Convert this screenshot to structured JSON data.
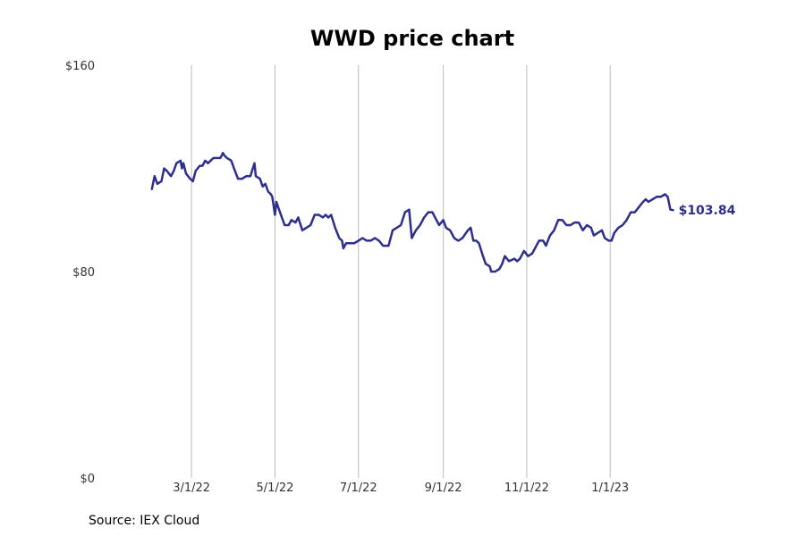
{
  "chart_data": {
    "type": "line",
    "title": "WWD price chart",
    "source": "Source: IEX Cloud",
    "xlabel": "",
    "ylabel": "",
    "ylim": [
      0,
      160
    ],
    "xlim": [
      "2022-01-05",
      "2023-03-19"
    ],
    "y_ticks": [
      {
        "value": 0,
        "label": "$0"
      },
      {
        "value": 80,
        "label": "$80"
      },
      {
        "value": 160,
        "label": "$160"
      }
    ],
    "x_ticks": [
      {
        "date": "2022-03-01",
        "label": "3/1/22"
      },
      {
        "date": "2022-05-01",
        "label": "5/1/22"
      },
      {
        "date": "2022-07-01",
        "label": "7/1/22"
      },
      {
        "date": "2022-09-01",
        "label": "9/1/22"
      },
      {
        "date": "2022-11-01",
        "label": "11/1/22"
      },
      {
        "date": "2023-01-01",
        "label": "1/1/23"
      }
    ],
    "grid": {
      "vertical": true,
      "horizontal": false
    },
    "line_color": "#2e2e8f",
    "grid_color": "#bbbbbb",
    "last_value_label": "$103.84",
    "series": [
      {
        "points": [
          [
            "2022-01-31",
            112
          ],
          [
            "2022-02-02",
            117
          ],
          [
            "2022-02-04",
            114
          ],
          [
            "2022-02-07",
            115
          ],
          [
            "2022-02-09",
            120
          ],
          [
            "2022-02-11",
            119
          ],
          [
            "2022-02-14",
            117
          ],
          [
            "2022-02-16",
            119
          ],
          [
            "2022-02-18",
            122
          ],
          [
            "2022-02-21",
            123
          ],
          [
            "2022-02-22",
            120
          ],
          [
            "2022-02-23",
            122
          ],
          [
            "2022-02-25",
            118
          ],
          [
            "2022-02-28",
            116
          ],
          [
            "2022-03-02",
            115
          ],
          [
            "2022-03-04",
            119
          ],
          [
            "2022-03-07",
            121
          ],
          [
            "2022-03-09",
            121
          ],
          [
            "2022-03-11",
            123
          ],
          [
            "2022-03-13",
            122
          ],
          [
            "2022-03-15",
            123
          ],
          [
            "2022-03-17",
            124
          ],
          [
            "2022-03-20",
            124
          ],
          [
            "2022-03-22",
            124
          ],
          [
            "2022-03-24",
            126
          ],
          [
            "2022-03-25",
            125
          ],
          [
            "2022-03-27",
            124
          ],
          [
            "2022-03-30",
            123
          ],
          [
            "2022-04-01",
            120
          ],
          [
            "2022-04-04",
            116
          ],
          [
            "2022-04-07",
            116
          ],
          [
            "2022-04-10",
            117
          ],
          [
            "2022-04-13",
            117
          ],
          [
            "2022-04-16",
            122
          ],
          [
            "2022-04-17",
            117
          ],
          [
            "2022-04-20",
            116
          ],
          [
            "2022-04-22",
            113
          ],
          [
            "2022-04-24",
            114
          ],
          [
            "2022-04-26",
            111
          ],
          [
            "2022-04-28",
            110
          ],
          [
            "2022-04-29",
            109
          ],
          [
            "2022-05-01",
            102
          ],
          [
            "2022-05-02",
            107
          ],
          [
            "2022-05-04",
            104
          ],
          [
            "2022-05-08",
            98
          ],
          [
            "2022-05-11",
            98
          ],
          [
            "2022-05-13",
            100
          ],
          [
            "2022-05-16",
            99
          ],
          [
            "2022-05-18",
            101
          ],
          [
            "2022-05-21",
            96
          ],
          [
            "2022-05-24",
            97
          ],
          [
            "2022-05-27",
            98
          ],
          [
            "2022-05-30",
            102
          ],
          [
            "2022-06-02",
            102
          ],
          [
            "2022-06-05",
            101
          ],
          [
            "2022-06-07",
            102
          ],
          [
            "2022-06-09",
            101
          ],
          [
            "2022-06-11",
            102
          ],
          [
            "2022-06-14",
            97
          ],
          [
            "2022-06-17",
            93
          ],
          [
            "2022-06-19",
            92
          ],
          [
            "2022-06-20",
            89
          ],
          [
            "2022-06-22",
            91
          ],
          [
            "2022-06-25",
            91
          ],
          [
            "2022-06-28",
            91
          ],
          [
            "2022-07-01",
            92
          ],
          [
            "2022-07-04",
            93
          ],
          [
            "2022-07-07",
            92
          ],
          [
            "2022-07-10",
            92
          ],
          [
            "2022-07-13",
            93
          ],
          [
            "2022-07-16",
            92
          ],
          [
            "2022-07-19",
            90
          ],
          [
            "2022-07-23",
            90
          ],
          [
            "2022-07-26",
            96
          ],
          [
            "2022-07-29",
            97
          ],
          [
            "2022-08-01",
            98
          ],
          [
            "2022-08-04",
            103
          ],
          [
            "2022-08-07",
            104
          ],
          [
            "2022-08-09",
            93
          ],
          [
            "2022-08-12",
            96
          ],
          [
            "2022-08-15",
            98
          ],
          [
            "2022-08-18",
            101
          ],
          [
            "2022-08-21",
            103
          ],
          [
            "2022-08-24",
            103
          ],
          [
            "2022-08-26",
            101
          ],
          [
            "2022-08-29",
            98
          ],
          [
            "2022-09-01",
            100
          ],
          [
            "2022-09-03",
            97
          ],
          [
            "2022-09-06",
            96
          ],
          [
            "2022-09-09",
            93
          ],
          [
            "2022-09-12",
            92
          ],
          [
            "2022-09-15",
            93
          ],
          [
            "2022-09-19",
            96
          ],
          [
            "2022-09-21",
            97
          ],
          [
            "2022-09-23",
            92
          ],
          [
            "2022-09-25",
            92
          ],
          [
            "2022-09-27",
            91
          ],
          [
            "2022-09-30",
            86
          ],
          [
            "2022-10-02",
            83
          ],
          [
            "2022-10-05",
            82
          ],
          [
            "2022-10-06",
            80
          ],
          [
            "2022-10-09",
            80
          ],
          [
            "2022-10-12",
            81
          ],
          [
            "2022-10-14",
            83
          ],
          [
            "2022-10-16",
            86
          ],
          [
            "2022-10-19",
            84
          ],
          [
            "2022-10-23",
            85
          ],
          [
            "2022-10-25",
            84
          ],
          [
            "2022-10-27",
            85
          ],
          [
            "2022-10-30",
            88
          ],
          [
            "2022-11-02",
            86
          ],
          [
            "2022-11-05",
            87
          ],
          [
            "2022-11-07",
            89
          ],
          [
            "2022-11-10",
            92
          ],
          [
            "2022-11-13",
            92
          ],
          [
            "2022-11-15",
            90
          ],
          [
            "2022-11-18",
            94
          ],
          [
            "2022-11-21",
            96
          ],
          [
            "2022-11-24",
            100
          ],
          [
            "2022-11-27",
            100
          ],
          [
            "2022-11-30",
            98
          ],
          [
            "2022-12-03",
            98
          ],
          [
            "2022-12-06",
            99
          ],
          [
            "2022-12-09",
            99
          ],
          [
            "2022-12-12",
            96
          ],
          [
            "2022-12-15",
            98
          ],
          [
            "2022-12-18",
            97
          ],
          [
            "2022-12-20",
            94
          ],
          [
            "2022-12-23",
            95
          ],
          [
            "2022-12-26",
            96
          ],
          [
            "2022-12-28",
            93
          ],
          [
            "2022-12-31",
            92
          ],
          [
            "2023-01-02",
            92
          ],
          [
            "2023-01-04",
            95
          ],
          [
            "2023-01-07",
            97
          ],
          [
            "2023-01-10",
            98
          ],
          [
            "2023-01-13",
            100
          ],
          [
            "2023-01-16",
            103
          ],
          [
            "2023-01-19",
            103
          ],
          [
            "2023-01-22",
            105
          ],
          [
            "2023-01-25",
            107
          ],
          [
            "2023-01-27",
            108
          ],
          [
            "2023-01-29",
            107
          ],
          [
            "2023-02-01",
            108
          ],
          [
            "2023-02-04",
            109
          ],
          [
            "2023-02-07",
            109
          ],
          [
            "2023-02-10",
            110
          ],
          [
            "2023-02-12",
            109
          ],
          [
            "2023-02-14",
            104
          ],
          [
            "2023-02-16",
            103.84
          ]
        ]
      }
    ]
  }
}
